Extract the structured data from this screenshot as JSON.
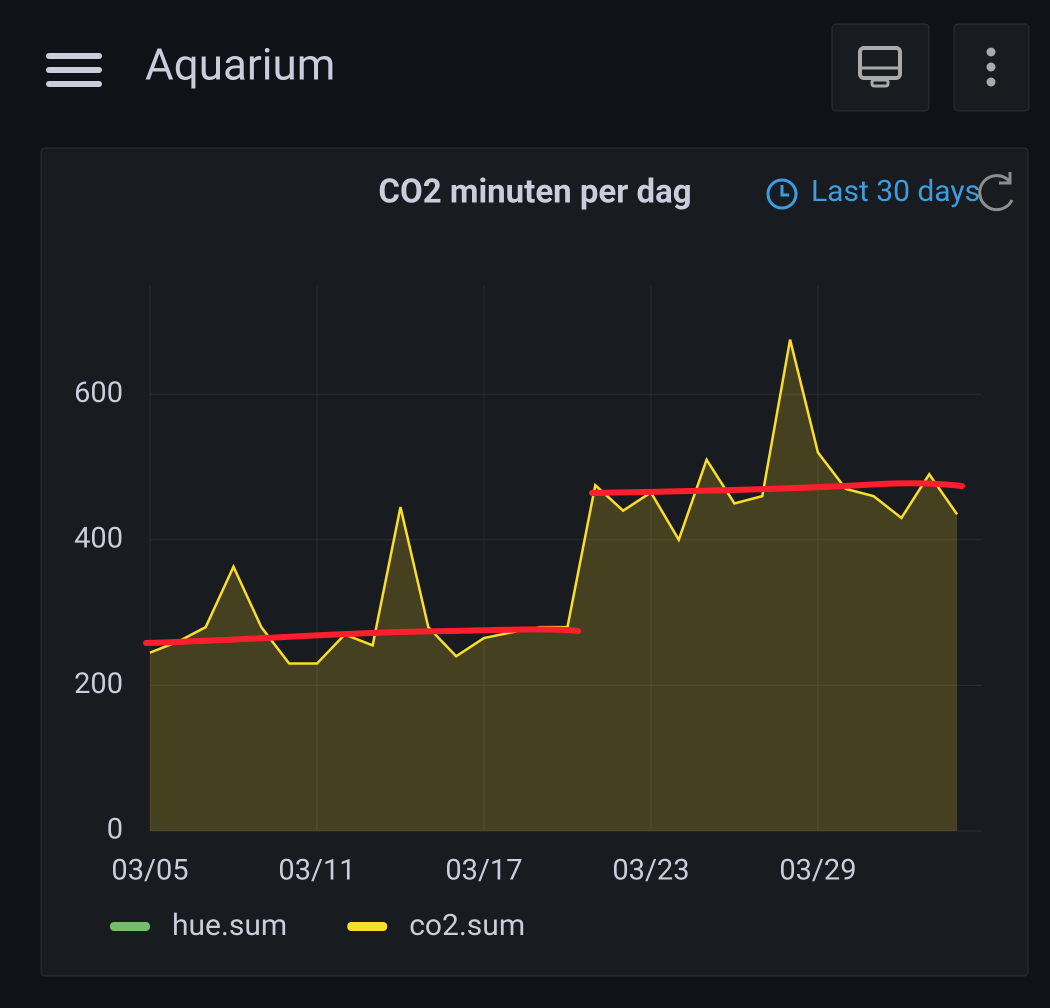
{
  "header": {
    "title": "Aquarium"
  },
  "panel": {
    "title": "CO2 minuten per dag",
    "time_range": "Last 30 days"
  },
  "chart_data": {
    "type": "area",
    "categories": [
      "03/05",
      null,
      null,
      null,
      null,
      null,
      "03/11",
      null,
      null,
      null,
      null,
      null,
      "03/17",
      null,
      null,
      null,
      null,
      null,
      "03/23",
      null,
      null,
      null,
      null,
      null,
      "03/29",
      null,
      null,
      null,
      null,
      null
    ],
    "series": [
      {
        "name": "hue.sum",
        "color": "#73bf69",
        "values": [
          null,
          null,
          null,
          null,
          null,
          null,
          null,
          null,
          null,
          null,
          null,
          null,
          null,
          null,
          null,
          null,
          null,
          null,
          null,
          null,
          null,
          null,
          null,
          null,
          null,
          null,
          null,
          null,
          null,
          null
        ]
      },
      {
        "name": "co2.sum",
        "color": "#fade2a",
        "values": [
          245,
          260,
          280,
          363,
          280,
          230,
          230,
          270,
          255,
          445,
          280,
          240,
          265,
          273,
          280,
          280,
          475,
          440,
          465,
          400,
          510,
          450,
          460,
          675,
          520,
          470,
          460,
          430,
          490,
          435
        ]
      }
    ],
    "ylim": [
      0,
      750
    ],
    "yticks": [
      0,
      200,
      400,
      600
    ],
    "grid": true
  }
}
